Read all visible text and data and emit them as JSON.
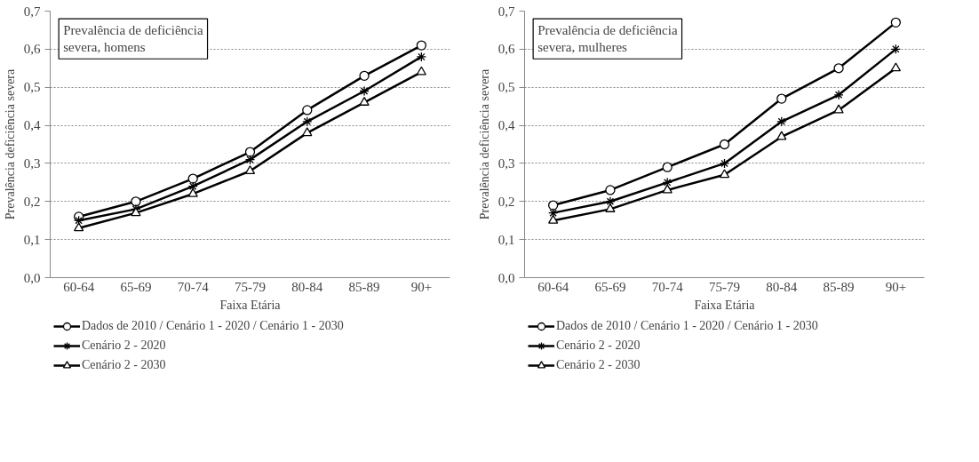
{
  "chart_data": [
    {
      "type": "line",
      "title": "Prevalência de deficiência\nsevera, homens",
      "xlabel": "Faixa Etária",
      "ylabel": "Prevalência deficiência severa",
      "categories": [
        "60-64",
        "65-69",
        "70-74",
        "75-79",
        "80-84",
        "85-89",
        "90+"
      ],
      "series": [
        {
          "name": "Dados de 2010 / Cenário 1 - 2020 / Cenário 1 - 2030",
          "color": "#000000",
          "marker": "circle",
          "values": [
            0.16,
            0.2,
            0.26,
            0.33,
            0.44,
            0.53,
            0.61
          ]
        },
        {
          "name": "Cenário 2 - 2020",
          "color": "#000000",
          "marker": "cross",
          "values": [
            0.15,
            0.18,
            0.24,
            0.31,
            0.41,
            0.49,
            0.58
          ]
        },
        {
          "name": "Cenário 2 - 2030",
          "color": "#000000",
          "marker": "triangle",
          "values": [
            0.13,
            0.17,
            0.22,
            0.28,
            0.38,
            0.46,
            0.54
          ]
        }
      ],
      "ylim": [
        0,
        0.7
      ],
      "yticks": [
        {
          "value": 0,
          "label": "0,0"
        },
        {
          "value": 0.1,
          "label": "0,1"
        },
        {
          "value": 0.2,
          "label": "0,2"
        },
        {
          "value": 0.3,
          "label": "0,3"
        },
        {
          "value": 0.4,
          "label": "0,4"
        },
        {
          "value": 0.5,
          "label": "0,5"
        },
        {
          "value": 0.6,
          "label": "0,6"
        },
        {
          "value": 0.7,
          "label": "0,7"
        }
      ],
      "grid": "y",
      "legend": "bottom",
      "line_style": "solid"
    },
    {
      "type": "line",
      "title": "Prevalência de deficiência\nsevera, mulheres",
      "xlabel": "Faixa Etária",
      "ylabel": "Prevalência deficiência severa",
      "categories": [
        "60-64",
        "65-69",
        "70-74",
        "75-79",
        "80-84",
        "85-89",
        "90+"
      ],
      "series": [
        {
          "name": "Dados de 2010 / Cenário 1 - 2020 / Cenário 1 - 2030",
          "color": "#000000",
          "marker": "circle",
          "values": [
            0.19,
            0.23,
            0.29,
            0.35,
            0.47,
            0.55,
            0.67
          ]
        },
        {
          "name": "Cenário 2 - 2020",
          "color": "#000000",
          "marker": "cross",
          "values": [
            0.17,
            0.2,
            0.25,
            0.3,
            0.41,
            0.48,
            0.6
          ]
        },
        {
          "name": "Cenário 2 - 2030",
          "color": "#000000",
          "marker": "triangle",
          "values": [
            0.15,
            0.18,
            0.23,
            0.27,
            0.37,
            0.44,
            0.55
          ]
        }
      ],
      "ylim": [
        0,
        0.7
      ],
      "yticks": [
        {
          "value": 0,
          "label": "0,0"
        },
        {
          "value": 0.1,
          "label": "0,1"
        },
        {
          "value": 0.2,
          "label": "0,2"
        },
        {
          "value": 0.3,
          "label": "0,3"
        },
        {
          "value": 0.4,
          "label": "0,4"
        },
        {
          "value": 0.5,
          "label": "0,5"
        },
        {
          "value": 0.6,
          "label": "0,6"
        },
        {
          "value": 0.7,
          "label": "0,7"
        }
      ],
      "grid": "y",
      "legend": "bottom",
      "line_style": "solid"
    }
  ]
}
